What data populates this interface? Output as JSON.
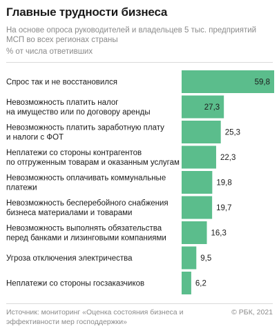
{
  "header": {
    "title": "Главные трудности бизнеса",
    "subtitle": "На основе опроса руководителей и владельцев 5 тыс. предприятий МСП во всех регионах страны",
    "unit": "% от числа ответивших"
  },
  "footer": {
    "source": "Источник: мониторинг «Оценка состояния бизнеса и эффективности мер господдержки»",
    "copyright": "© РБК, 2021"
  },
  "colors": {
    "bar": "#5bbd8c",
    "text": "#1a1a1a",
    "muted": "#8a8a8a"
  },
  "chart_data": {
    "type": "bar",
    "orientation": "horizontal",
    "categories": [
      "Спрос так и не восстановился",
      "Невозможность платить налог\nна имущество или по договору аренды",
      "Невозможность платить заработную плату\nи налоги с ФОТ",
      "Неплатежи со стороны контрагентов\nпо отгруженным товарам и оказанным услугам",
      "Невозможность оплачивать коммунальные\nплатежи",
      "Невозможность бесперебойного снабжения\nбизнеса материалами и товарами",
      "Невозможность выполнять обязательства\nперед банками и лизинговыми компаниями",
      "Угроза отключения электричества",
      "Неплатежи со стороны госзаказчиков"
    ],
    "values": [
      59.8,
      27.3,
      25.3,
      22.3,
      19.8,
      19.7,
      16.3,
      9.5,
      6.2
    ],
    "value_labels": [
      "59,8",
      "27,3",
      "25,3",
      "22,3",
      "19,8",
      "19,7",
      "16,3",
      "9,5",
      "6,2"
    ],
    "xlim": [
      0,
      59.8
    ],
    "grid": false,
    "legend": "none"
  }
}
